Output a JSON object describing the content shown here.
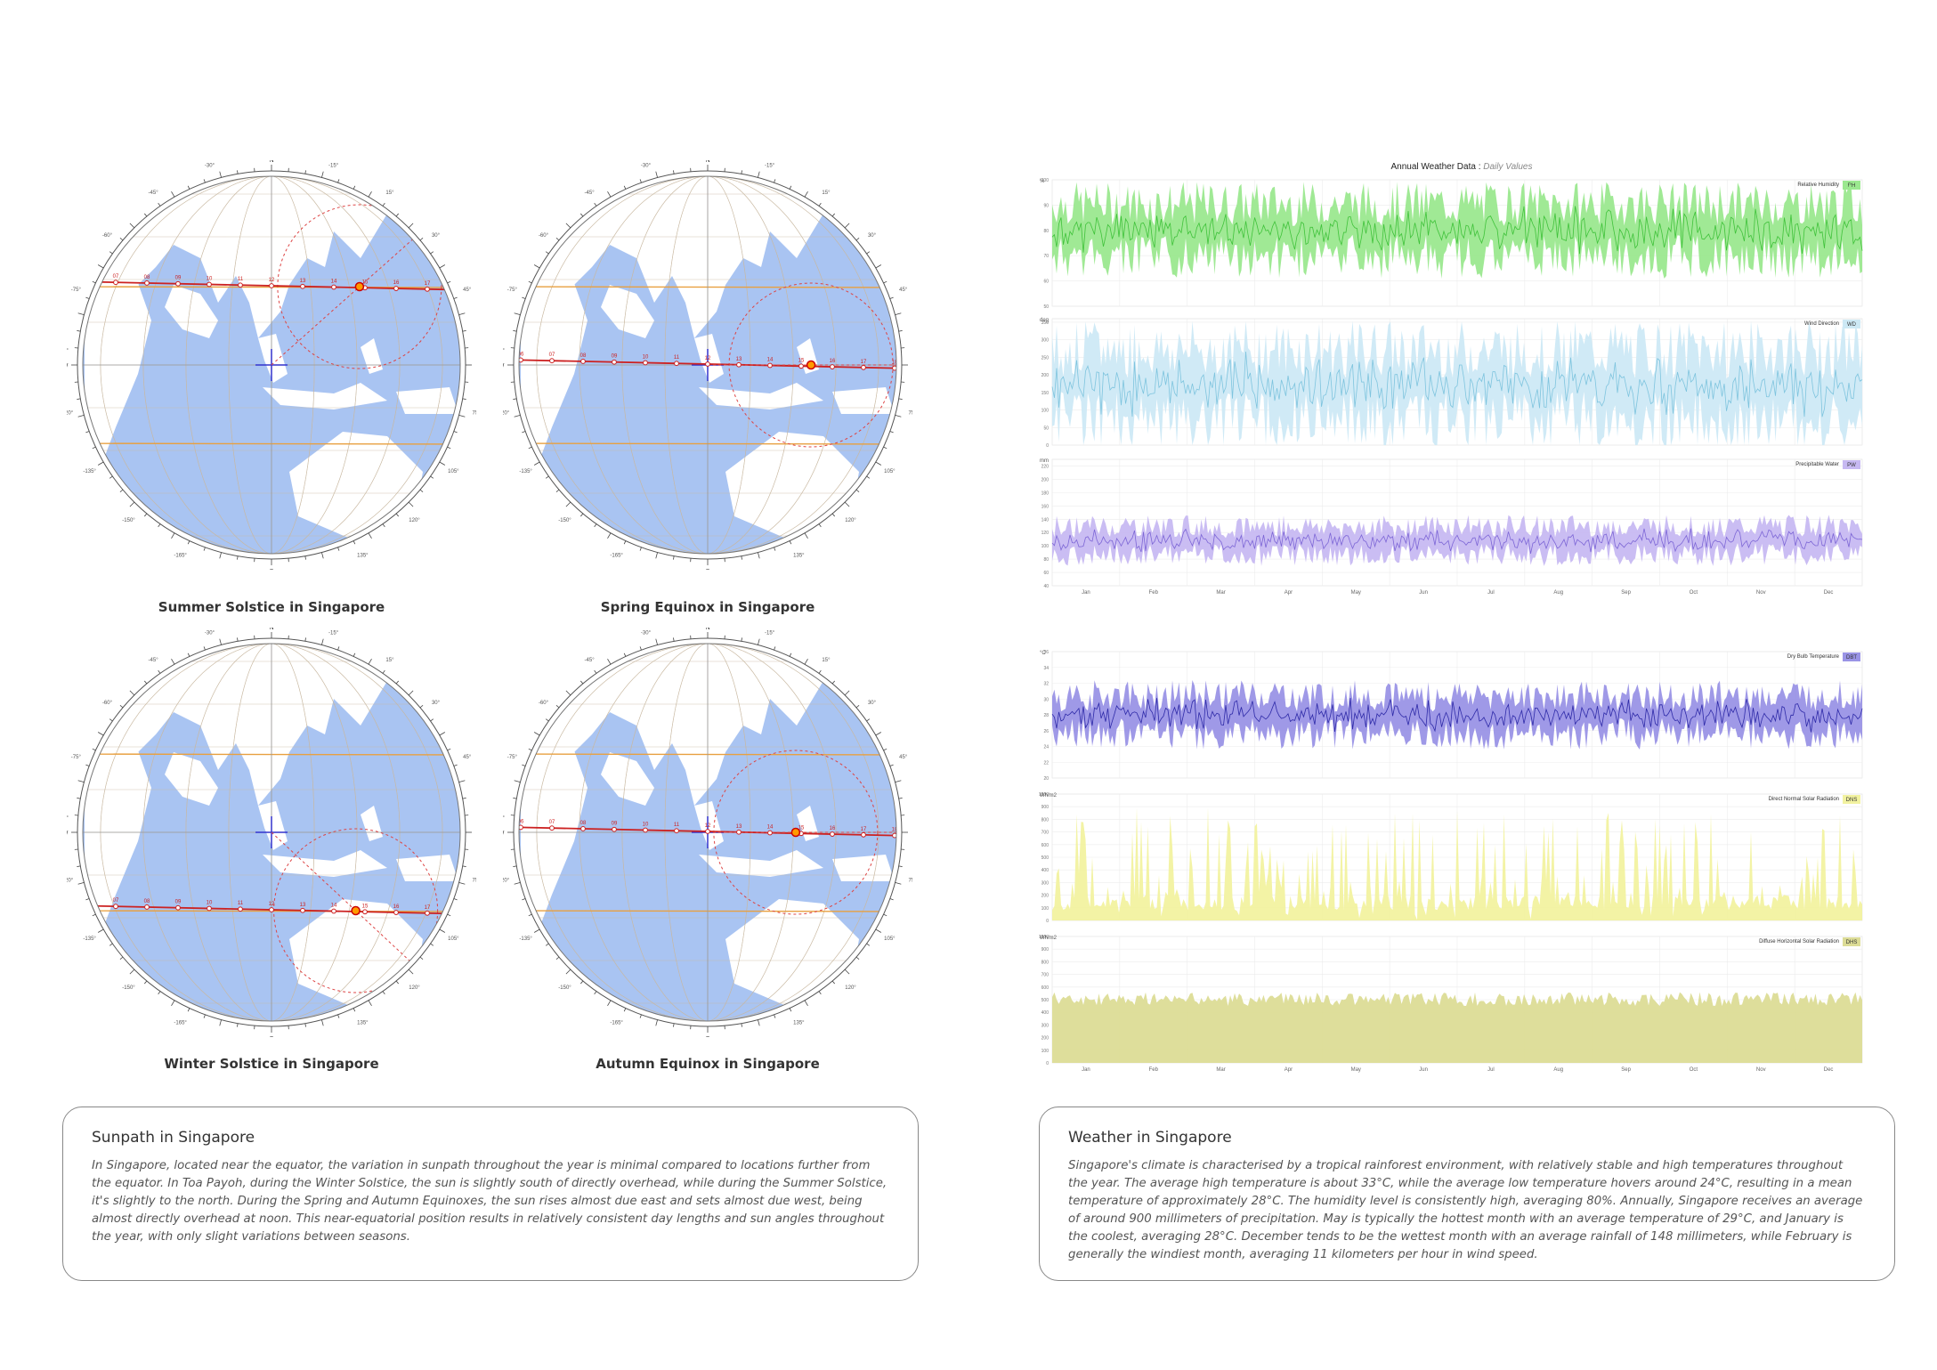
{
  "sunpath": {
    "globes": [
      {
        "id": "summer",
        "caption": "Summer Solstice in Singapore",
        "sun_lat": 22,
        "sun_lon": 23
      },
      {
        "id": "spring",
        "caption": "Spring Equinox in Singapore",
        "sun_lat": 0,
        "sun_lon": 27
      },
      {
        "id": "winter",
        "caption": "Winter Solstice in Singapore",
        "sun_lat": -22,
        "sun_lon": 22
      },
      {
        "id": "autumn",
        "caption": "Autumn Equinox in Singapore",
        "sun_lat": 0,
        "sun_lon": 23
      }
    ],
    "compass": {
      "n": "N",
      "s": "S",
      "e": "E",
      "w": "W"
    },
    "hour_labels": [
      "06",
      "07",
      "08",
      "09",
      "10",
      "11",
      "12",
      "13",
      "14",
      "15",
      "16",
      "17",
      "18"
    ],
    "tick_labels": [
      "-15°",
      "15°",
      "30°",
      "45°",
      "60°",
      "75°",
      "105°",
      "120°",
      "135°",
      "150°",
      "165°",
      "-165°",
      "-150°",
      "-135°",
      "-120°",
      "-105°",
      "-75°",
      "-60°",
      "-45°",
      "-30°"
    ]
  },
  "weather": {
    "title": "Annual Weather Data",
    "subtitle": "Daily Values",
    "months": [
      "Jan",
      "Feb",
      "Mar",
      "Apr",
      "May",
      "Jun",
      "Jul",
      "Aug",
      "Sep",
      "Oct",
      "Nov",
      "Dec"
    ]
  },
  "chart_data": [
    {
      "type": "area",
      "title": "Relative Humidity",
      "tag": "RH",
      "unit": "%",
      "color": "#9be88f",
      "line": "#3fc23a",
      "ylim": [
        50,
        100
      ],
      "yticks": [
        50,
        60,
        70,
        80,
        90,
        100
      ],
      "mean": 80,
      "low": 62,
      "high": 97
    },
    {
      "type": "area",
      "title": "Wind Direction",
      "tag": "WD",
      "unit": "deg",
      "color": "#cde9f5",
      "line": "#7ec4de",
      "ylim": [
        0,
        360
      ],
      "yticks": [
        0,
        50,
        100,
        150,
        200,
        250,
        300,
        350
      ],
      "mean": 170,
      "low": 20,
      "high": 355
    },
    {
      "type": "area",
      "title": "Precipitable Water",
      "tag": "PW",
      "unit": "mm",
      "color": "#c7b9f2",
      "line": "#7d66d6",
      "ylim": [
        40,
        230
      ],
      "yticks": [
        40,
        60,
        80,
        100,
        120,
        140,
        160,
        180,
        200,
        220
      ],
      "mean": 108,
      "low": 90,
      "high": 160
    },
    {
      "type": "area",
      "title": "Dry Bulb Temperature",
      "tag": "DBT",
      "unit": "°C",
      "color": "#9a94e6",
      "line": "#2e2aa8",
      "ylim": [
        20,
        36
      ],
      "yticks": [
        20,
        22,
        24,
        26,
        28,
        30,
        32,
        34,
        36
      ],
      "mean": 28,
      "low": 24.5,
      "high": 32.5
    },
    {
      "type": "area",
      "title": "Direct Normal Solar Radiation",
      "tag": "DNS",
      "unit": "Wh/m2",
      "color": "#f2f2a0",
      "line": "#d8d85a",
      "ylim": [
        0,
        1000
      ],
      "yticks": [
        0,
        100,
        200,
        300,
        400,
        500,
        600,
        700,
        800,
        900,
        1000
      ],
      "mean": 120,
      "low": 0,
      "high": 900
    },
    {
      "type": "area",
      "title": "Diffuse Horizontal Solar Radiation",
      "tag": "DHS",
      "unit": "Wh/m2",
      "color": "#dcdc96",
      "line": "#bcbc5c",
      "ylim": [
        0,
        1000
      ],
      "yticks": [
        0,
        100,
        200,
        300,
        400,
        500,
        600,
        700,
        800,
        900,
        1000
      ],
      "mean": 450,
      "low": 300,
      "high": 560
    }
  ],
  "panels": {
    "sunpath": {
      "title": "Sunpath in Singapore",
      "body": "In Singapore, located near the equator, the variation in sunpath throughout the year is minimal compared to locations further from the equator. In Toa Payoh, during the Winter Solstice, the sun is slightly south of directly overhead, while during the Summer Solstice, it's slightly to the north. During the Spring and Autumn Equinoxes, the sun rises almost due east and sets almost due west, being almost directly overhead at noon. This near-equatorial position results in relatively consistent day lengths and sun angles throughout the year, with only slight variations between seasons."
    },
    "weather": {
      "title": "Weather in Singapore",
      "body": "Singapore's climate is characterised by a tropical rainforest environment, with relatively stable and high temperatures throughout the year. The average high temperature is about 33°C, while the average low temperature hovers around 24°C, resulting in a mean temperature of approximately 28°C. The humidity level is consistently high, averaging 80%. Annually, Singapore receives an average of around 900 millimeters of precipitation. May is typically the hottest month with an average temperature of 29°C, and January is the coolest, averaging 28°C. December tends to be the wettest month with an average rainfall of 148 millimeters, while February is generally the windiest month, averaging 11 kilometers per hour in wind speed."
    }
  }
}
